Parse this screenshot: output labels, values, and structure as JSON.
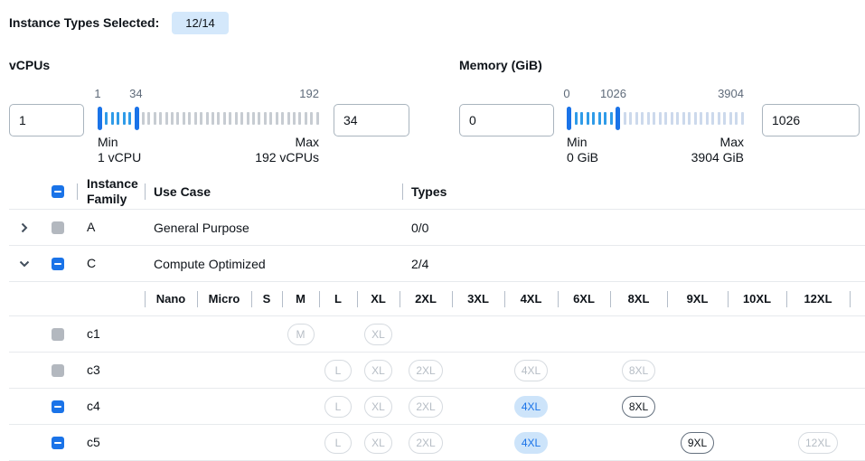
{
  "header": {
    "label": "Instance Types Selected:",
    "badge": "12/14"
  },
  "filters": [
    {
      "title": "vCPUs",
      "min_input": "1",
      "max_input": "34",
      "slider": {
        "min": 1,
        "max": 192,
        "from": 1,
        "to": 34,
        "from_label": "1",
        "to_label": "34",
        "end_label": "192",
        "min_label": "Min",
        "min_value_label": "1 vCPU",
        "max_label": "Max",
        "max_value_label": "192 vCPUs"
      }
    },
    {
      "title": "Memory (GiB)",
      "min_input": "0",
      "max_input": "1026",
      "slider": {
        "min": 0,
        "max": 3904,
        "from": 0,
        "to": 1026,
        "from_label": "0",
        "to_label": "1026",
        "end_label": "3904",
        "min_label": "Min",
        "min_value_label": "0 GiB",
        "max_label": "Max",
        "max_value_label": "3904 GiB"
      }
    }
  ],
  "table": {
    "columns": {
      "family": "Instance Family",
      "use_case": "Use Case",
      "types": "Types"
    },
    "size_columns": [
      "Nano",
      "Micro",
      "S",
      "M",
      "L",
      "XL",
      "2XL",
      "3XL",
      "4XL",
      "6XL",
      "8XL",
      "9XL",
      "10XL",
      "12XL"
    ],
    "family_rows": [
      {
        "expand": "collapsed",
        "checkbox": "disabled",
        "family": "A",
        "use_case": "General Purpose",
        "types": "0/0"
      },
      {
        "expand": "expanded",
        "checkbox": "indeterminate",
        "family": "C",
        "use_case": "Compute Optimized",
        "types": "2/4"
      }
    ],
    "instance_rows": [
      {
        "checkbox": "disabled",
        "family": "c1",
        "pills": [
          {
            "size": "M",
            "state": "disabled"
          },
          {
            "size": "XL",
            "state": "disabled"
          }
        ]
      },
      {
        "checkbox": "disabled",
        "family": "c3",
        "pills": [
          {
            "size": "L",
            "state": "disabled"
          },
          {
            "size": "XL",
            "state": "disabled"
          },
          {
            "size": "2XL",
            "state": "disabled"
          },
          {
            "size": "4XL",
            "state": "disabled"
          },
          {
            "size": "8XL",
            "state": "disabled"
          }
        ]
      },
      {
        "checkbox": "indeterminate",
        "family": "c4",
        "pills": [
          {
            "size": "L",
            "state": "disabled"
          },
          {
            "size": "XL",
            "state": "disabled"
          },
          {
            "size": "2XL",
            "state": "disabled"
          },
          {
            "size": "4XL",
            "state": "selected"
          },
          {
            "size": "8XL",
            "state": "enabled"
          }
        ]
      },
      {
        "checkbox": "indeterminate",
        "family": "c5",
        "pills": [
          {
            "size": "L",
            "state": "disabled"
          },
          {
            "size": "XL",
            "state": "disabled"
          },
          {
            "size": "2XL",
            "state": "disabled"
          },
          {
            "size": "4XL",
            "state": "selected"
          },
          {
            "size": "9XL",
            "state": "enabled"
          },
          {
            "size": "12XL",
            "state": "disabled"
          }
        ]
      }
    ]
  },
  "colors": {
    "accent": "#1a73e8",
    "tick-active": "#2f9be8",
    "tick-idle": "#c7ccd2",
    "tick-idle-mem": "#ccd9ec",
    "selected-pill-bg": "#cde4fa",
    "badge-bg": "#d4e8fb",
    "disabled-gray": "#b3b8bf"
  }
}
